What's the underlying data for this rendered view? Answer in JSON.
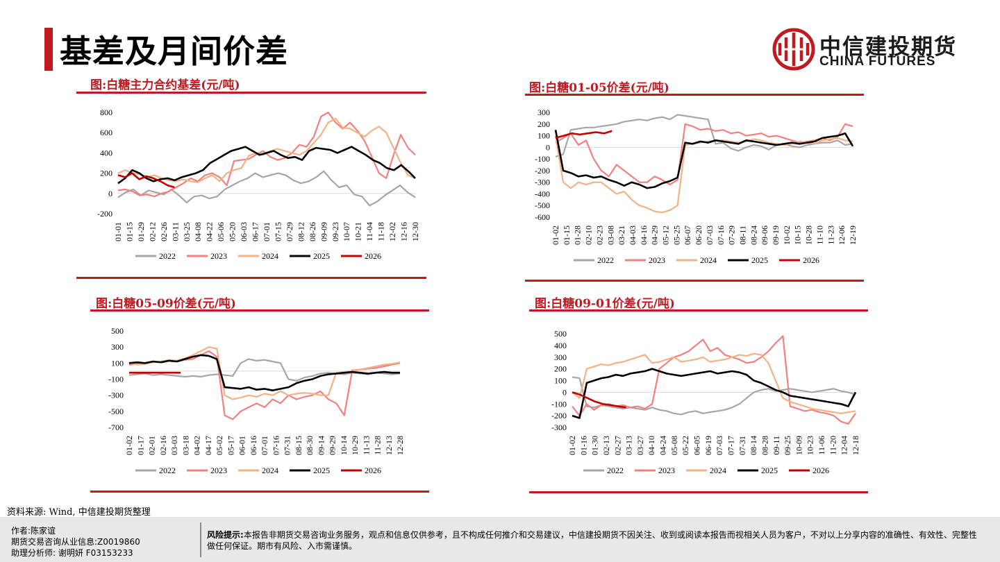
{
  "page": {
    "title": "基差及月间价差",
    "logo_cn": "中信建投期货",
    "logo_en": "CHINA FUTURES",
    "source": "资料来源: Wind, 中信建投期货整理"
  },
  "footer": {
    "author": "作者:陈家谊",
    "license": "期货交易咨询从业信息:Z0019860",
    "assistant": "助理分析师:  谢明妍 F03153233",
    "risk_label": "风险提示:",
    "risk_text": "本报告非期货交易咨询业务服务，观点和信息仅供参考，且不构成任何推介和交易建议，中信建投期货不因关注、收到或阅读本报告而视相关人员为客户，不对以上分享内容的准确性、有效性、完整性做任何保证。期市有风险、入市需谨慎。"
  },
  "colors": {
    "accent": "#c0191f",
    "y2022": "#a6a6a6",
    "y2023": "#f28080",
    "y2024": "#f4b183",
    "y2025": "#000000",
    "y2026": "#c00000"
  },
  "chart_data": [
    {
      "id": "basis",
      "type": "line",
      "title": "图:白糖主力合约基差(元/吨)",
      "ylim": [
        -200,
        800
      ],
      "yticks": [
        -200,
        0,
        200,
        400,
        600,
        800
      ],
      "x_labels": [
        "01-01",
        "01-15",
        "01-29",
        "02-12",
        "02-26",
        "03-11",
        "03-25",
        "04-08",
        "04-22",
        "05-06",
        "05-20",
        "06-03",
        "06-17",
        "07-01",
        "07-15",
        "07-29",
        "08-12",
        "08-26",
        "09-09",
        "09-23",
        "10-07",
        "10-21",
        "11-04",
        "11-18",
        "12-02",
        "12-16",
        "12-30"
      ],
      "series": [
        {
          "name": "2022",
          "values": [
            -40,
            10,
            40,
            -20,
            30,
            10,
            -10,
            40,
            -20,
            -90,
            -30,
            -20,
            -50,
            -30,
            40,
            80,
            120,
            150,
            200,
            160,
            180,
            200,
            180,
            130,
            100,
            120,
            160,
            220,
            130,
            60,
            80,
            -10,
            -30,
            -120,
            -80,
            -20,
            30,
            80,
            10,
            -40
          ]
        },
        {
          "name": "2023",
          "values": [
            30,
            40,
            20,
            -20,
            -10,
            -30,
            0,
            20,
            60,
            100,
            150,
            120,
            180,
            200,
            160,
            80,
            320,
            330,
            340,
            380,
            420,
            360,
            330,
            350,
            400,
            480,
            460,
            560,
            760,
            800,
            700,
            640,
            700,
            620,
            520,
            360,
            200,
            150,
            380,
            580,
            450,
            380
          ]
        },
        {
          "name": "2024",
          "values": [
            200,
            230,
            200,
            190,
            160,
            180,
            150,
            130,
            120,
            140,
            120,
            110,
            150,
            180,
            120,
            200,
            230,
            250,
            370,
            400,
            380,
            420,
            440,
            420,
            400,
            380,
            420,
            500,
            580,
            700,
            740,
            650,
            640,
            600,
            560,
            620,
            660,
            600,
            450,
            300,
            180,
            150
          ]
        },
        {
          "name": "2025",
          "values": [
            100,
            150,
            230,
            200,
            150,
            120,
            140,
            150,
            130,
            160,
            180,
            200,
            230,
            300,
            340,
            380,
            420,
            440,
            460,
            420,
            380,
            400,
            420,
            380,
            350,
            360,
            330,
            420,
            450,
            440,
            430,
            400,
            430,
            460,
            420,
            380,
            330,
            300,
            250,
            230,
            280,
            220,
            150
          ]
        },
        {
          "name": "2026",
          "values": [
            180,
            160,
            200,
            140,
            170,
            150,
            120,
            80,
            60
          ]
        }
      ]
    },
    {
      "id": "spread0105",
      "type": "line",
      "title": "图:白糖01-05价差(元/吨)",
      "ylim": [
        -600,
        300
      ],
      "yticks": [
        -600,
        -500,
        -400,
        -300,
        -200,
        -100,
        0,
        100,
        200,
        300
      ],
      "x_labels": [
        "01-02",
        "01-15",
        "01-28",
        "02-10",
        "02-23",
        "03-08",
        "03-21",
        "04-03",
        "04-16",
        "04-29",
        "05-12",
        "05-25",
        "06-07",
        "06-20",
        "07-03",
        "07-16",
        "07-29",
        "08-11",
        "08-24",
        "09-06",
        "09-19",
        "10-02",
        "10-15",
        "10-28",
        "11-10",
        "11-23",
        "12-06",
        "12-19"
      ],
      "series": [
        {
          "name": "2022",
          "values": [
            -80,
            -60,
            150,
            160,
            170,
            170,
            180,
            190,
            200,
            220,
            230,
            240,
            230,
            250,
            260,
            240,
            280,
            270,
            260,
            250,
            240,
            30,
            40,
            -10,
            -30,
            0,
            20,
            10,
            -20,
            20,
            30,
            10,
            0,
            20,
            30,
            40,
            40,
            60,
            20,
            30
          ]
        },
        {
          "name": "2023",
          "values": [
            40,
            80,
            120,
            20,
            60,
            -100,
            -200,
            -250,
            -150,
            -200,
            -250,
            -300,
            -300,
            -250,
            -280,
            -320,
            -280,
            200,
            180,
            150,
            160,
            140,
            150,
            120,
            130,
            100,
            110,
            120,
            90,
            100,
            80,
            60,
            40,
            50,
            60,
            80,
            60,
            90,
            200,
            180
          ]
        },
        {
          "name": "2024",
          "values": [
            100,
            -300,
            -350,
            -300,
            -320,
            -300,
            -300,
            -350,
            -400,
            -380,
            -450,
            -500,
            -520,
            -550,
            -560,
            -540,
            -500,
            20,
            30,
            40,
            50,
            60,
            60,
            50,
            40,
            50,
            70,
            60,
            40,
            30,
            20,
            30,
            50,
            40,
            30,
            60,
            70,
            80,
            60,
            50
          ]
        },
        {
          "name": "2025",
          "values": [
            150,
            -200,
            -220,
            -250,
            -240,
            -260,
            -250,
            -280,
            -300,
            -330,
            -300,
            -320,
            -350,
            -340,
            -310,
            -290,
            -260,
            40,
            30,
            50,
            40,
            60,
            50,
            40,
            30,
            60,
            50,
            40,
            30,
            20,
            30,
            40,
            30,
            40,
            50,
            80,
            90,
            100,
            120,
            10
          ]
        },
        {
          "name": "2026",
          "values": [
            80,
            100,
            120,
            110,
            120,
            130,
            120,
            140
          ]
        }
      ]
    },
    {
      "id": "spread0509",
      "type": "line",
      "title": "图:白糖05-09价差(元/吨)",
      "ylim": [
        -700,
        500
      ],
      "yticks": [
        -700,
        -500,
        -300,
        -100,
        100,
        300,
        500
      ],
      "x_labels": [
        "01-02",
        "01-17",
        "02-01",
        "02-16",
        "03-03",
        "03-18",
        "04-02",
        "04-17",
        "05-02",
        "05-17",
        "06-01",
        "06-16",
        "07-01",
        "07-16",
        "07-31",
        "08-15",
        "08-30",
        "09-14",
        "09-29",
        "10-14",
        "10-29",
        "11-13",
        "11-28",
        "12-13",
        "12-28"
      ],
      "series": [
        {
          "name": "2022",
          "values": [
            -50,
            -40,
            -30,
            -50,
            -40,
            -50,
            -60,
            -70,
            -60,
            -70,
            -50,
            -40,
            -50,
            -60,
            100,
            150,
            130,
            140,
            120,
            100,
            -100,
            -120,
            -80,
            -60,
            -30,
            -20,
            -30,
            -40,
            -20,
            -30,
            -40,
            -20,
            -30,
            -40,
            -30
          ]
        },
        {
          "name": "2023",
          "values": [
            80,
            90,
            100,
            110,
            120,
            130,
            120,
            140,
            150,
            200,
            250,
            180,
            -550,
            -600,
            -500,
            -450,
            -400,
            -450,
            -350,
            -400,
            -300,
            -350,
            -320,
            -300,
            -250,
            -350,
            -400,
            -550,
            10,
            20,
            30,
            40,
            60,
            80,
            100
          ]
        },
        {
          "name": "2024",
          "values": [
            100,
            80,
            90,
            110,
            120,
            140,
            130,
            160,
            200,
            250,
            300,
            280,
            -300,
            -350,
            -330,
            -300,
            -320,
            -280,
            -300,
            -250,
            -300,
            -280,
            -270,
            -280,
            -300,
            -300,
            -20,
            -10,
            0,
            20,
            40,
            60,
            80,
            90,
            110
          ]
        },
        {
          "name": "2025",
          "values": [
            100,
            110,
            100,
            120,
            110,
            130,
            120,
            150,
            180,
            200,
            190,
            150,
            -200,
            -210,
            -220,
            -200,
            -230,
            -220,
            -240,
            -220,
            -200,
            -150,
            -120,
            -100,
            -60,
            -40,
            -30,
            -20,
            -10,
            -20,
            -30,
            -20,
            -10,
            -20,
            -20
          ]
        },
        {
          "name": "2026",
          "values": [
            -20,
            -20,
            -20,
            -20,
            -20,
            -20,
            -20
          ]
        }
      ]
    },
    {
      "id": "spread0901",
      "type": "line",
      "title": "图:白糖09-01价差(元/吨)",
      "ylim": [
        -300,
        500
      ],
      "yticks": [
        -300,
        -200,
        -100,
        0,
        100,
        200,
        300,
        400,
        500
      ],
      "x_labels": [
        "01-02",
        "01-16",
        "01-30",
        "02-13",
        "02-27",
        "03-13",
        "03-27",
        "04-10",
        "04-24",
        "05-08",
        "05-22",
        "06-05",
        "06-19",
        "07-03",
        "07-17",
        "07-31",
        "08-14",
        "08-28",
        "09-11",
        "09-25",
        "10-09",
        "10-23",
        "11-06",
        "11-20",
        "12-04",
        "12-18"
      ],
      "series": [
        {
          "name": "2022",
          "values": [
            130,
            120,
            -120,
            -130,
            -110,
            -120,
            -130,
            -140,
            -130,
            -140,
            -150,
            -130,
            -150,
            -160,
            -180,
            -190,
            -170,
            -160,
            -180,
            -170,
            -160,
            -150,
            -130,
            -100,
            -50,
            0,
            20,
            30,
            10,
            20,
            30,
            20,
            10,
            0,
            10,
            20,
            30,
            10,
            0,
            -20
          ]
        },
        {
          "name": "2023",
          "values": [
            -120,
            -200,
            -100,
            -150,
            -110,
            -100,
            -120,
            -110,
            -130,
            -120,
            -140,
            -100,
            200,
            250,
            300,
            320,
            350,
            400,
            450,
            350,
            380,
            320,
            300,
            280,
            250,
            260,
            300,
            350,
            420,
            480,
            -120,
            -140,
            -160,
            -150,
            -170,
            -180,
            -200,
            -250,
            -270,
            -180
          ]
        },
        {
          "name": "2024",
          "values": [
            0,
            -50,
            200,
            220,
            240,
            230,
            250,
            260,
            280,
            300,
            320,
            250,
            260,
            280,
            300,
            260,
            270,
            280,
            300,
            260,
            270,
            280,
            300,
            320,
            310,
            330,
            320,
            250,
            100,
            -50,
            -80,
            -100,
            -120,
            -140,
            -150,
            -160,
            -170,
            -180,
            -170,
            -160
          ]
        },
        {
          "name": "2025",
          "values": [
            -200,
            -220,
            80,
            100,
            120,
            130,
            150,
            140,
            160,
            170,
            180,
            200,
            180,
            160,
            150,
            140,
            150,
            160,
            170,
            180,
            160,
            170,
            180,
            170,
            150,
            100,
            80,
            50,
            20,
            0,
            -30,
            -40,
            -50,
            -60,
            -70,
            -80,
            -90,
            -100,
            -120,
            0
          ]
        },
        {
          "name": "2026",
          "values": [
            0,
            -20,
            -50,
            -80,
            -100,
            -110,
            -120,
            -130
          ]
        }
      ]
    }
  ]
}
